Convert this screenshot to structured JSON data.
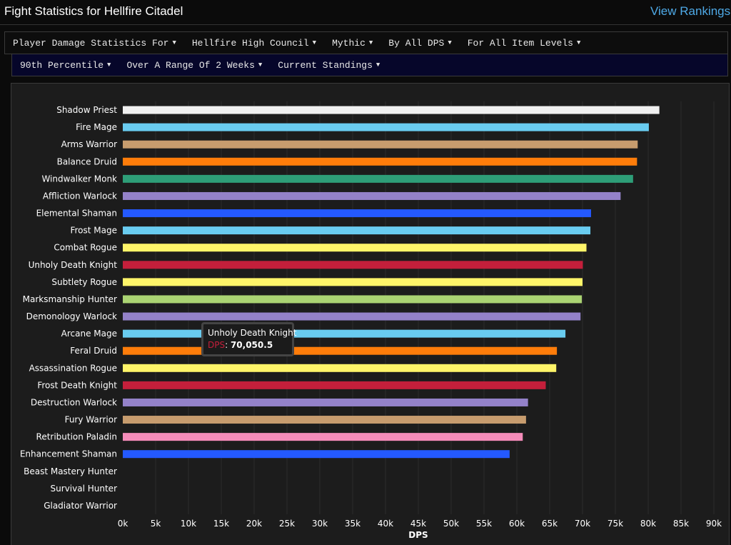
{
  "header": {
    "title": "Fight Statistics for Hellfire Citadel",
    "view_rankings": "View Rankings"
  },
  "filters": {
    "row1": [
      "Player Damage Statistics For",
      "Hellfire High Council",
      "Mythic",
      "By All DPS",
      "For All Item Levels"
    ],
    "row2": [
      "90th Percentile",
      "Over A Range Of 2 Weeks",
      "Current Standings"
    ]
  },
  "tooltip": {
    "name": "Unholy Death Knight",
    "series": "DPS",
    "value": "70,050.5"
  },
  "chart_data": {
    "type": "bar",
    "orientation": "horizontal",
    "title": "",
    "xlabel": "DPS",
    "ylabel": "",
    "xlim": [
      0,
      90000
    ],
    "grid": true,
    "ticks": [
      "0k",
      "5k",
      "10k",
      "15k",
      "20k",
      "25k",
      "30k",
      "35k",
      "40k",
      "45k",
      "50k",
      "55k",
      "60k",
      "65k",
      "70k",
      "75k",
      "80k",
      "85k",
      "90k"
    ],
    "categories": [
      "Shadow Priest",
      "Fire Mage",
      "Arms Warrior",
      "Balance Druid",
      "Windwalker Monk",
      "Affliction Warlock",
      "Elemental Shaman",
      "Frost Mage",
      "Combat Rogue",
      "Unholy Death Knight",
      "Subtlety Rogue",
      "Marksmanship Hunter",
      "Demonology Warlock",
      "Arcane Mage",
      "Feral Druid",
      "Assassination Rogue",
      "Frost Death Knight",
      "Destruction Warlock",
      "Fury Warrior",
      "Retribution Paladin",
      "Enhancement Shaman",
      "Beast Mastery Hunter",
      "Survival Hunter",
      "Gladiator Warrior"
    ],
    "values": [
      81700,
      80100,
      78400,
      78300,
      77700,
      75800,
      71300,
      71200,
      70600,
      70050.5,
      70000,
      69900,
      69700,
      67400,
      66100,
      66000,
      64400,
      61700,
      61400,
      60900,
      58900,
      0,
      0,
      0
    ],
    "colors": [
      "#f0f0f0",
      "#69ccf0",
      "#c79c6e",
      "#ff7d0a",
      "#2e9e78",
      "#9482c9",
      "#2459ff",
      "#69ccf0",
      "#fff569",
      "#c41f3b",
      "#fff569",
      "#abd473",
      "#9482c9",
      "#69ccf0",
      "#ff7d0a",
      "#fff569",
      "#c41f3b",
      "#9482c9",
      "#c79c6e",
      "#f58cba",
      "#2459ff",
      "#abd473",
      "#abd473",
      "#c79c6e"
    ]
  }
}
